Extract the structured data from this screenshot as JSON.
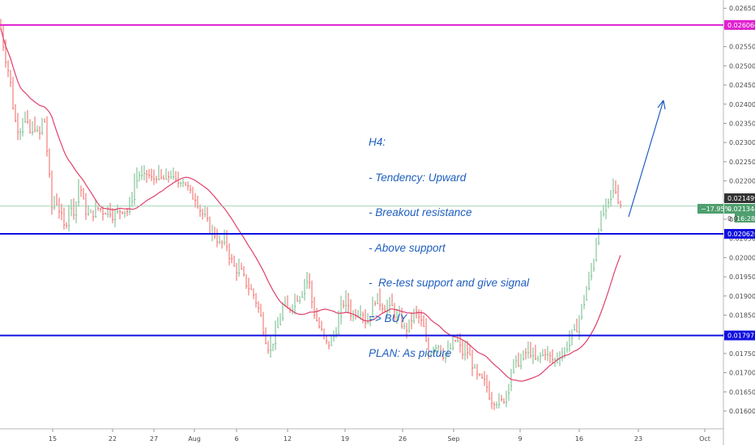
{
  "chart_data": {
    "type": "candlestick",
    "timeframe": "H4",
    "ylim": [
      0.0158,
      0.0266
    ],
    "y_ticks": [
      "0.026500",
      "0.026000",
      "0.025500",
      "0.025000",
      "0.024500",
      "0.024000",
      "0.023500",
      "0.023000",
      "0.022500",
      "0.022000",
      "0.021500",
      "0.021000",
      "0.020500",
      "0.020000",
      "0.019500",
      "0.019000",
      "0.018500",
      "0.018000",
      "0.017500",
      "0.017000",
      "0.016500",
      "0.016000"
    ],
    "x_ticks": [
      "15",
      "22",
      "27",
      "Aug",
      "6",
      "12",
      "19",
      "26",
      "Sep",
      "9",
      "16",
      "23",
      "Oct"
    ],
    "levels": [
      {
        "value": 0.026066,
        "label": "0.026066",
        "color": "#e020d0"
      },
      {
        "value": 0.02062,
        "label": "0.020620",
        "color": "#1010e0"
      },
      {
        "value": 0.017971,
        "label": "0.017971",
        "color": "#1010e0"
      }
    ],
    "price_labels": [
      {
        "value": 0.021499,
        "label": "0.021499",
        "color": "#333333"
      },
      {
        "value": 0.021344,
        "label": "0.021344",
        "color": "#4f9f6f"
      }
    ],
    "change_label": "−17.95%",
    "countdown_label": "16:28",
    "partial_label": "0.0",
    "current_price": 0.021344,
    "up_color": "#5fb37a",
    "down_color": "#ef5350",
    "ma_color": "#e0406a",
    "arrow_color": "#1f5fbf",
    "price_path": [
      [
        0,
        0.0261
      ],
      [
        6,
        0.0253
      ],
      [
        12,
        0.0247
      ],
      [
        18,
        0.0236
      ],
      [
        24,
        0.0233
      ],
      [
        30,
        0.0238
      ],
      [
        36,
        0.0232
      ],
      [
        42,
        0.0235
      ],
      [
        48,
        0.0231
      ],
      [
        54,
        0.0238
      ],
      [
        60,
        0.0223
      ],
      [
        64,
        0.0213
      ],
      [
        68,
        0.0216
      ],
      [
        74,
        0.0212
      ],
      [
        80,
        0.0207
      ],
      [
        86,
        0.0215
      ],
      [
        92,
        0.0212
      ],
      [
        98,
        0.022
      ],
      [
        104,
        0.0213
      ],
      [
        110,
        0.0211
      ],
      [
        116,
        0.0212
      ],
      [
        122,
        0.0213
      ],
      [
        128,
        0.0212
      ],
      [
        134,
        0.0213
      ],
      [
        140,
        0.0211
      ],
      [
        146,
        0.0212
      ],
      [
        152,
        0.0213
      ],
      [
        158,
        0.0212
      ],
      [
        162,
        0.0215
      ],
      [
        166,
        0.022
      ],
      [
        170,
        0.0222
      ],
      [
        176,
        0.0221
      ],
      [
        182,
        0.0222
      ],
      [
        188,
        0.022
      ],
      [
        194,
        0.0222
      ],
      [
        200,
        0.022
      ],
      [
        206,
        0.0221
      ],
      [
        212,
        0.0222
      ],
      [
        218,
        0.0219
      ],
      [
        224,
        0.0221
      ],
      [
        230,
        0.0219
      ],
      [
        236,
        0.0216
      ],
      [
        242,
        0.0216
      ],
      [
        248,
        0.0212
      ],
      [
        254,
        0.021
      ],
      [
        260,
        0.0207
      ],
      [
        266,
        0.0206
      ],
      [
        272,
        0.0203
      ],
      [
        278,
        0.0205
      ],
      [
        284,
        0.02
      ],
      [
        290,
        0.0197
      ],
      [
        296,
        0.0197
      ],
      [
        302,
        0.0194
      ],
      [
        308,
        0.0192
      ],
      [
        314,
        0.019
      ],
      [
        320,
        0.0186
      ],
      [
        326,
        0.0181
      ],
      [
        330,
        0.0177
      ],
      [
        334,
        0.0177
      ],
      [
        338,
        0.0179
      ],
      [
        344,
        0.0183
      ],
      [
        350,
        0.0188
      ],
      [
        356,
        0.0186
      ],
      [
        362,
        0.0189
      ],
      [
        368,
        0.019
      ],
      [
        374,
        0.0192
      ],
      [
        378,
        0.0196
      ],
      [
        382,
        0.0193
      ],
      [
        386,
        0.0187
      ],
      [
        392,
        0.0183
      ],
      [
        398,
        0.018
      ],
      [
        404,
        0.0177
      ],
      [
        410,
        0.0179
      ],
      [
        416,
        0.0182
      ],
      [
        422,
        0.0188
      ],
      [
        428,
        0.0189
      ],
      [
        434,
        0.0185
      ],
      [
        440,
        0.0186
      ],
      [
        446,
        0.0187
      ],
      [
        452,
        0.0183
      ],
      [
        458,
        0.0186
      ],
      [
        464,
        0.019
      ],
      [
        470,
        0.0188
      ],
      [
        476,
        0.0187
      ],
      [
        482,
        0.0188
      ],
      [
        488,
        0.0185
      ],
      [
        494,
        0.0184
      ],
      [
        500,
        0.0181
      ],
      [
        506,
        0.0183
      ],
      [
        512,
        0.0186
      ],
      [
        518,
        0.0184
      ],
      [
        524,
        0.0181
      ],
      [
        528,
        0.0174
      ],
      [
        534,
        0.0177
      ],
      [
        540,
        0.0178
      ],
      [
        546,
        0.0175
      ],
      [
        552,
        0.0175
      ],
      [
        558,
        0.0177
      ],
      [
        564,
        0.0179
      ],
      [
        570,
        0.0175
      ],
      [
        576,
        0.0176
      ],
      [
        582,
        0.0173
      ],
      [
        588,
        0.0169
      ],
      [
        594,
        0.0168
      ],
      [
        600,
        0.0167
      ],
      [
        606,
        0.0163
      ],
      [
        612,
        0.0163
      ],
      [
        618,
        0.0162
      ],
      [
        624,
        0.0164
      ],
      [
        630,
        0.017
      ],
      [
        636,
        0.0173
      ],
      [
        642,
        0.0173
      ],
      [
        648,
        0.0175
      ],
      [
        654,
        0.0176
      ],
      [
        660,
        0.0173
      ],
      [
        666,
        0.0174
      ],
      [
        672,
        0.0176
      ],
      [
        678,
        0.0174
      ],
      [
        684,
        0.0173
      ],
      [
        690,
        0.0175
      ],
      [
        696,
        0.0175
      ],
      [
        700,
        0.0178
      ],
      [
        706,
        0.018
      ],
      [
        712,
        0.0182
      ],
      [
        718,
        0.0187
      ],
      [
        724,
        0.0192
      ],
      [
        730,
        0.0197
      ],
      [
        734,
        0.0201
      ],
      [
        738,
        0.0208
      ],
      [
        742,
        0.021
      ],
      [
        746,
        0.0213
      ],
      [
        750,
        0.0213
      ],
      [
        754,
        0.0217
      ],
      [
        758,
        0.0219
      ],
      [
        762,
        0.0216
      ],
      [
        766,
        0.0214
      ],
      [
        770,
        0.0213
      ]
    ]
  },
  "annotation": {
    "lines": [
      "H4:",
      "- Tendency: Upward",
      "- Breakout resistance",
      "- Above support",
      "-  Re-test support and give signal",
      "=> BUY",
      "PLAN: As picture"
    ]
  }
}
